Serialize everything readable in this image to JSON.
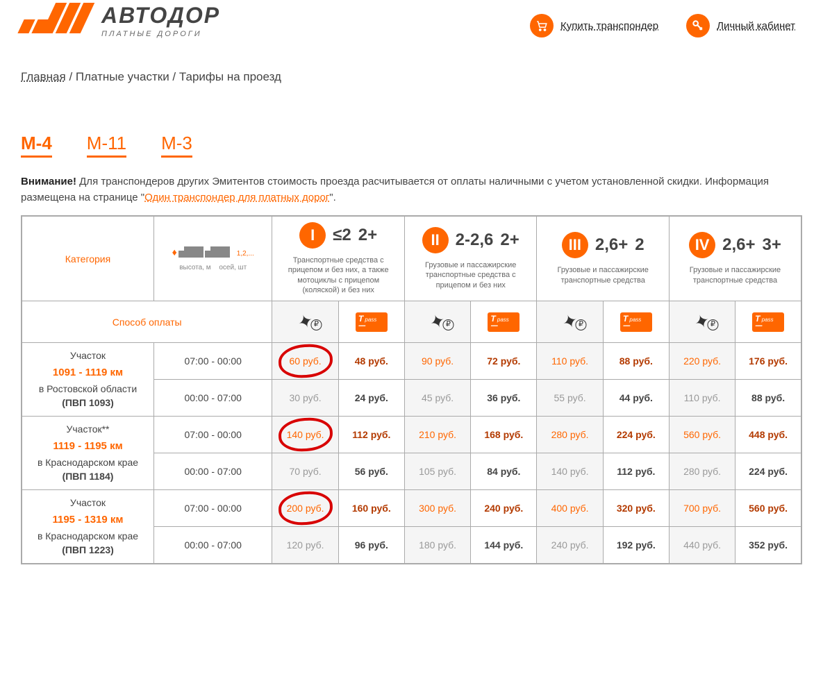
{
  "brand": {
    "title": "АВТОДОР",
    "subtitle": "ПЛАТНЫЕ ДОРОГИ"
  },
  "header_links": {
    "buy": "Купить транспондер",
    "cabinet": "Личный кабинет"
  },
  "breadcrumb": {
    "home": "Главная",
    "sep1": " / Платные участки / Тарифы на проезд"
  },
  "tabs": [
    "М-4",
    "М-11",
    "М-3"
  ],
  "notice": {
    "bold": "Внимание!",
    "text1": " Для транспондеров других Эмитентов стоимость проезда расчитывается от оплаты наличными с учетом установленной скидки. Информация размещена на странице \"",
    "link": "Один транспондер для платных дорог",
    "text2": "\"."
  },
  "table_header": {
    "category": "Категория",
    "legend_height": "высота, м",
    "legend_axles": "осей, шт",
    "pay_label": "Способ оплаты",
    "cats": [
      {
        "roman": "I",
        "h": "≤2",
        "a": "2+",
        "desc": "Транспортные средства с прицепом и без них, а также мотоциклы с прицепом (коляской) и без них"
      },
      {
        "roman": "II",
        "h": "2-2,6",
        "a": "2+",
        "desc": "Грузовые и пассажирские транспортные средства с прицепом и без них"
      },
      {
        "roman": "III",
        "h": "2,6+",
        "a": "2",
        "desc": "Грузовые и пассажирские транспортные средства"
      },
      {
        "roman": "IV",
        "h": "2,6+",
        "a": "3+",
        "desc": "Грузовые и пассажирские транспортные средства"
      }
    ],
    "colors": {
      "accent": "#ff6600",
      "circle": "#d80000"
    }
  },
  "currency": "руб.",
  "sections": [
    {
      "title": "Участок",
      "km": "1091 - 1119 км",
      "loc": "в Ростовской области",
      "pvp": "(ПВП 1093)",
      "rows": [
        {
          "time": "07:00 - 00:00",
          "prices": [
            [
              60,
              48
            ],
            [
              90,
              72
            ],
            [
              110,
              88
            ],
            [
              220,
              176
            ]
          ],
          "circle_cash_idx": 0
        },
        {
          "time": "00:00 - 07:00",
          "prices": [
            [
              30,
              24
            ],
            [
              45,
              36
            ],
            [
              55,
              44
            ],
            [
              110,
              88
            ]
          ]
        }
      ]
    },
    {
      "title": "Участок**",
      "km": "1119 - 1195 км",
      "loc": "в Краснодарском крае",
      "pvp": "(ПВП 1184)",
      "rows": [
        {
          "time": "07:00 - 00:00",
          "prices": [
            [
              140,
              112
            ],
            [
              210,
              168
            ],
            [
              280,
              224
            ],
            [
              560,
              448
            ]
          ],
          "circle_cash_idx": 0
        },
        {
          "time": "00:00 - 07:00",
          "prices": [
            [
              70,
              56
            ],
            [
              105,
              84
            ],
            [
              140,
              112
            ],
            [
              280,
              224
            ]
          ]
        }
      ]
    },
    {
      "title": "Участок",
      "km": "1195 - 1319 км",
      "loc": "в Краснодарском крае",
      "pvp": "(ПВП 1223)",
      "rows": [
        {
          "time": "07:00 - 00:00",
          "prices": [
            [
              200,
              160
            ],
            [
              300,
              240
            ],
            [
              400,
              320
            ],
            [
              700,
              560
            ]
          ],
          "circle_cash_idx": 0
        },
        {
          "time": "00:00 - 07:00",
          "prices": [
            [
              120,
              96
            ],
            [
              180,
              144
            ],
            [
              240,
              192
            ],
            [
              440,
              352
            ]
          ]
        }
      ]
    }
  ]
}
